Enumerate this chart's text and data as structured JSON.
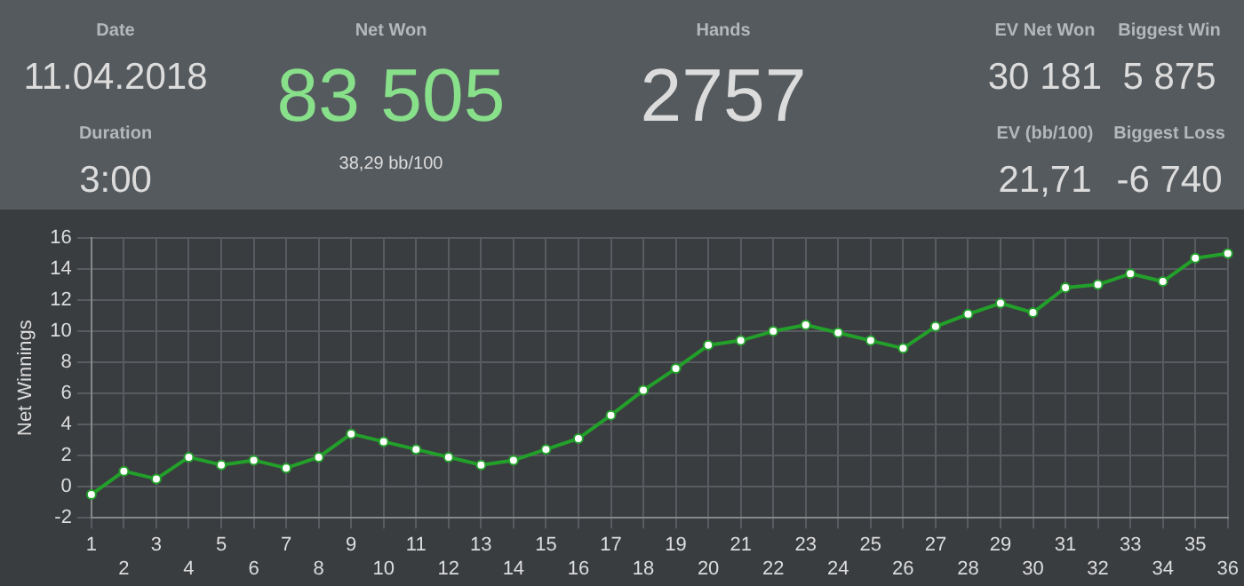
{
  "chart_data": [
    {
      "type": "other",
      "annotations": [
        "Date",
        "11.04.2018",
        "Duration",
        "3:00",
        "Net Won",
        "83 505",
        "38,29 bb/100",
        "Hands",
        "2757",
        "EV Net Won",
        "30 181",
        "Biggest Win",
        "5 875",
        "EV (bb/100)",
        "21,71",
        "Biggest Loss",
        "-6 740"
      ]
    },
    {
      "type": "line",
      "ylabel": "Net Winnings",
      "categories": [
        "1",
        "2",
        "3",
        "4",
        "5",
        "6",
        "7",
        "8",
        "9",
        "10",
        "11",
        "12",
        "13",
        "14",
        "15",
        "16",
        "17",
        "18",
        "19",
        "20",
        "21",
        "22",
        "23",
        "24",
        "25",
        "26",
        "27",
        "28",
        "29",
        "30",
        "31",
        "32",
        "33",
        "34",
        "35",
        "36"
      ],
      "series": [
        {
          "color": "#22a02a",
          "values": [
            -0.5,
            1.0,
            0.5,
            1.9,
            1.4,
            1.7,
            1.2,
            1.9,
            3.4,
            2.9,
            2.4,
            1.9,
            1.4,
            1.7,
            2.4,
            3.1,
            4.6,
            6.2,
            7.6,
            9.1,
            9.4,
            10.0,
            10.4,
            9.9,
            9.4,
            8.9,
            10.3,
            11.1,
            11.8,
            11.2,
            12.8,
            13.0,
            13.7,
            13.2,
            14.7,
            15.0
          ]
        }
      ],
      "ylim": [
        -2,
        16
      ],
      "yticks": [
        -2,
        0,
        2,
        4,
        6,
        8,
        10,
        12,
        14,
        16
      ],
      "grid": true,
      "marker": "circle",
      "line_style": "solid",
      "legend": false
    }
  ]
}
